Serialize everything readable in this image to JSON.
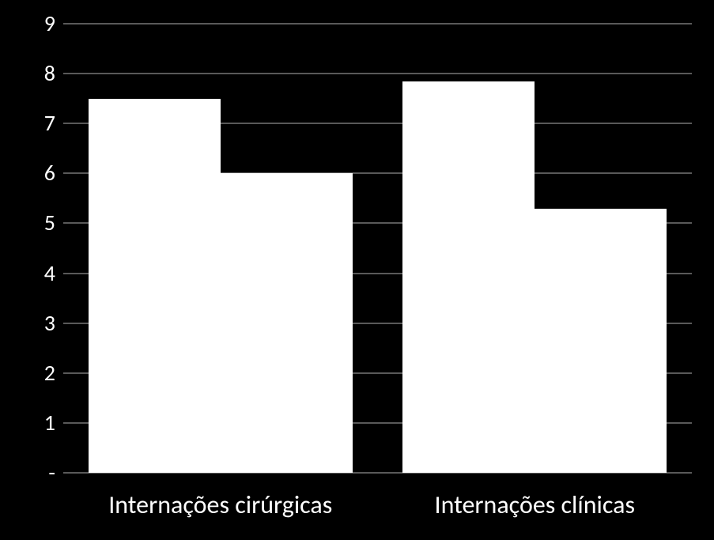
{
  "chart": {
    "type": "bar",
    "background_color": "#000000",
    "grid_color": "#595959",
    "bar_color": "#ffffff",
    "text_color": "#ffffff",
    "font_family": "Calibri",
    "tick_fontsize": 28,
    "category_fontsize": 32,
    "ylim_min": 0,
    "ylim_max": 9,
    "ytick_step": 1,
    "ytick_labels": [
      "-",
      "1",
      "2",
      "3",
      "4",
      "5",
      "6",
      "7",
      "8",
      "9"
    ],
    "categories": [
      {
        "label": "Internações cirúrgicas",
        "bars": [
          7.5,
          6.0
        ]
      },
      {
        "label": "Internações clínicas",
        "bars": [
          7.85,
          5.3
        ]
      }
    ],
    "bar_glow_color": "rgba(255,255,255,0.25)"
  }
}
